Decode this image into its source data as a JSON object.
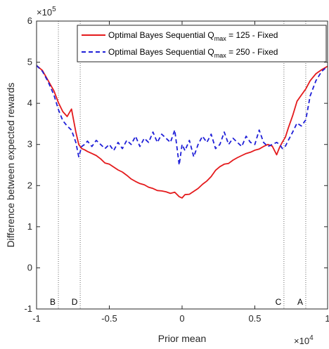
{
  "chart_data": {
    "type": "line",
    "xlabel": "Prior mean",
    "ylabel": "Difference between expected rewards",
    "x_multiplier": "×10",
    "x_multiplier_exp": "4",
    "y_multiplier": "×10",
    "y_multiplier_exp": "5",
    "xlim": [
      -10000,
      10000
    ],
    "ylim": [
      -100000,
      600000
    ],
    "xticks": [
      -10000,
      -5000,
      0,
      5000,
      10000
    ],
    "xtick_labels": [
      "-1",
      "-0.5",
      "0",
      "0.5",
      "1"
    ],
    "yticks": [
      -100000,
      0,
      100000,
      200000,
      300000,
      400000,
      500000,
      600000
    ],
    "ytick_labels": [
      "-1",
      "0",
      "1",
      "2",
      "3",
      "4",
      "5",
      "6"
    ],
    "grid": false,
    "legend_position": "top-right",
    "vertical_markers": [
      {
        "label": "B",
        "x": -8500
      },
      {
        "label": "D",
        "x": -7000
      },
      {
        "label": "C",
        "x": 7000
      },
      {
        "label": "A",
        "x": 8500
      }
    ],
    "series": [
      {
        "legend_prefix": "Optimal Bayes Sequential Q",
        "legend_sub": "max",
        "legend_suffix": " = 125 - Fixed",
        "color": "#e41a1c",
        "dash": "solid",
        "x": [
          -10000,
          -9600,
          -9200,
          -8800,
          -8500,
          -8200,
          -7900,
          -7600,
          -7300,
          -7100,
          -6900,
          -6700,
          -6500,
          -6200,
          -5900,
          -5600,
          -5300,
          -5000,
          -4700,
          -4400,
          -4100,
          -3800,
          -3500,
          -3200,
          -2900,
          -2600,
          -2300,
          -2000,
          -1700,
          -1400,
          -1100,
          -800,
          -500,
          -200,
          0,
          200,
          500,
          800,
          1100,
          1400,
          1700,
          2000,
          2300,
          2600,
          2900,
          3200,
          3500,
          3800,
          4100,
          4400,
          4700,
          5000,
          5300,
          5600,
          5900,
          6200,
          6500,
          6700,
          6900,
          7100,
          7300,
          7600,
          7900,
          8200,
          8500,
          8800,
          9200,
          9600,
          10000
        ],
        "values": [
          492000,
          480000,
          455000,
          430000,
          402000,
          380000,
          368000,
          386000,
          330000,
          300000,
          290000,
          287000,
          283000,
          278000,
          273000,
          265000,
          255000,
          252000,
          245000,
          238000,
          233000,
          225000,
          216000,
          210000,
          205000,
          202000,
          196000,
          193000,
          188000,
          187000,
          185000,
          181000,
          184000,
          173000,
          170000,
          178000,
          179000,
          186000,
          193000,
          203000,
          211000,
          222000,
          237000,
          246000,
          252000,
          254000,
          262000,
          268000,
          273000,
          278000,
          281000,
          286000,
          289000,
          295000,
          300000,
          296000,
          275000,
          293000,
          306000,
          318000,
          340000,
          370000,
          405000,
          420000,
          435000,
          455000,
          472000,
          482000,
          490000
        ]
      },
      {
        "legend_prefix": "Optimal Bayes Sequential Q",
        "legend_sub": "max",
        "legend_suffix": " = 250 - Fixed",
        "color": "#1f1fd8",
        "dash": "dashed",
        "x": [
          -10000,
          -9600,
          -9200,
          -8800,
          -8500,
          -8200,
          -7900,
          -7600,
          -7300,
          -7100,
          -6900,
          -6700,
          -6500,
          -6200,
          -5900,
          -5600,
          -5300,
          -5000,
          -4700,
          -4400,
          -4100,
          -3800,
          -3500,
          -3200,
          -2900,
          -2600,
          -2300,
          -2000,
          -1700,
          -1400,
          -1100,
          -800,
          -500,
          -200,
          0,
          200,
          500,
          800,
          1100,
          1400,
          1700,
          2000,
          2300,
          2600,
          2900,
          3200,
          3500,
          3800,
          4100,
          4400,
          4700,
          5000,
          5300,
          5600,
          5900,
          6200,
          6500,
          6700,
          6900,
          7100,
          7300,
          7600,
          7900,
          8200,
          8500,
          8800,
          9200,
          9600,
          10000
        ],
        "values": [
          492000,
          478000,
          452000,
          420000,
          385000,
          358000,
          345000,
          335000,
          305000,
          270000,
          295000,
          300000,
          308000,
          295000,
          310000,
          300000,
          290000,
          300000,
          285000,
          305000,
          290000,
          310000,
          300000,
          320000,
          295000,
          315000,
          305000,
          330000,
          305000,
          325000,
          315000,
          305000,
          335000,
          250000,
          300000,
          285000,
          310000,
          270000,
          300000,
          320000,
          305000,
          325000,
          290000,
          300000,
          330000,
          300000,
          315000,
          305000,
          295000,
          320000,
          305000,
          300000,
          335000,
          305000,
          295000,
          300000,
          305000,
          300000,
          290000,
          296000,
          310000,
          330000,
          352000,
          345000,
          360000,
          418000,
          455000,
          478000,
          490000
        ]
      }
    ]
  }
}
